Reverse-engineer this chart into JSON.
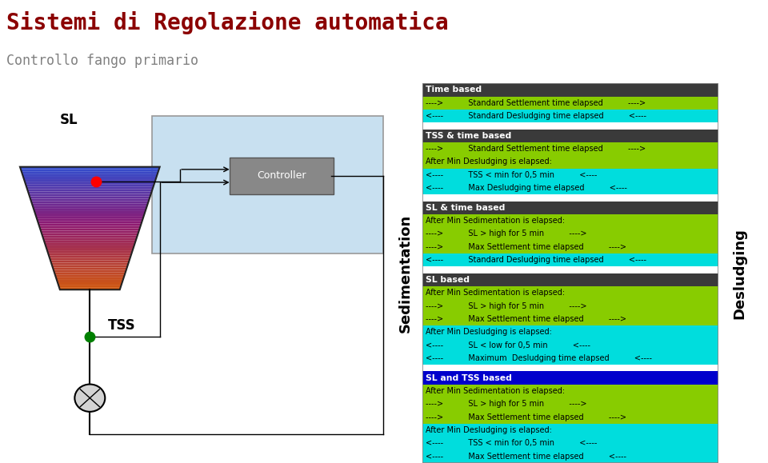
{
  "title": "Sistemi di Regolazione automatica",
  "subtitle": "Controllo fango primario",
  "title_color": "#8B0000",
  "subtitle_color": "#808080",
  "bg_color": "#FFFFFF",
  "sections": [
    {
      "header": "Time based",
      "header_bg": "#3a3a3a",
      "header_fg": "#FFFFFF",
      "rows": [
        {
          "text": "---->          Standard Settlement time elapsed          ---->",
          "bg": "#88cc00",
          "fg": "#000000"
        },
        {
          "text": "<----          Standard Desludging time elapsed          <----",
          "bg": "#00DDDD",
          "fg": "#000000"
        }
      ],
      "gap": true
    },
    {
      "header": "TSS & time based",
      "header_bg": "#3a3a3a",
      "header_fg": "#FFFFFF",
      "rows": [
        {
          "text": "---->          Standard Settlement time elapsed          ---->",
          "bg": "#88cc00",
          "fg": "#000000"
        },
        {
          "text": "After Min Desludging is elapsed:",
          "bg": "#88cc00",
          "fg": "#000000"
        },
        {
          "text": "<----          TSS < min for 0,5 min          <----",
          "bg": "#00DDDD",
          "fg": "#000000"
        },
        {
          "text": "<----          Max Desludging time elapsed          <----",
          "bg": "#00DDDD",
          "fg": "#000000"
        }
      ],
      "gap": true
    },
    {
      "header": "SL & time based",
      "header_bg": "#3a3a3a",
      "header_fg": "#FFFFFF",
      "rows": [
        {
          "text": "After Min Sedimentation is elapsed:",
          "bg": "#88cc00",
          "fg": "#000000"
        },
        {
          "text": "---->          SL > high for 5 min          ---->",
          "bg": "#88cc00",
          "fg": "#000000"
        },
        {
          "text": "---->          Max Settlement time elapsed          ---->",
          "bg": "#88cc00",
          "fg": "#000000"
        },
        {
          "text": "<----          Standard Desludging time elapsed          <----",
          "bg": "#00DDDD",
          "fg": "#000000"
        }
      ],
      "gap": true
    },
    {
      "header": "SL based",
      "header_bg": "#3a3a3a",
      "header_fg": "#FFFFFF",
      "rows": [
        {
          "text": "After Min Sedimentation is elapsed:",
          "bg": "#88cc00",
          "fg": "#000000"
        },
        {
          "text": "---->          SL > high for 5 min          ---->",
          "bg": "#88cc00",
          "fg": "#000000"
        },
        {
          "text": "---->          Max Settlement time elapsed          ---->",
          "bg": "#88cc00",
          "fg": "#000000"
        },
        {
          "text": "After Min Desludging is elapsed:",
          "bg": "#00DDDD",
          "fg": "#000000"
        },
        {
          "text": "<----          SL < low for 0,5 min          <----",
          "bg": "#00DDDD",
          "fg": "#000000"
        },
        {
          "text": "<----          Maximum  Desludging time elapsed          <----",
          "bg": "#00DDDD",
          "fg": "#000000"
        }
      ],
      "gap": true
    },
    {
      "header": "SL and TSS based",
      "header_bg": "#0000CC",
      "header_fg": "#FFFFFF",
      "rows": [
        {
          "text": "After Min Sedimentation is elapsed:",
          "bg": "#88cc00",
          "fg": "#000000"
        },
        {
          "text": "---->          SL > high for 5 min          ---->",
          "bg": "#88cc00",
          "fg": "#000000"
        },
        {
          "text": "---->          Max Settlement time elapsed          ---->",
          "bg": "#88cc00",
          "fg": "#000000"
        },
        {
          "text": "After Min Desludging is elapsed:",
          "bg": "#00DDDD",
          "fg": "#000000"
        },
        {
          "text": "<----          TSS < min for 0,5 min          <----",
          "bg": "#00DDDD",
          "fg": "#000000"
        },
        {
          "text": "<----          Max Settlement time elapsed          <----",
          "bg": "#00DDDD",
          "fg": "#000000"
        }
      ],
      "gap": false
    }
  ],
  "left_label": "Sedimentation",
  "right_label": "Desludging",
  "left_label_bg": "#F4A460",
  "right_label_bg": "#90EE90",
  "diagram_bg": "#C8E0F0",
  "table_border": "#888888"
}
